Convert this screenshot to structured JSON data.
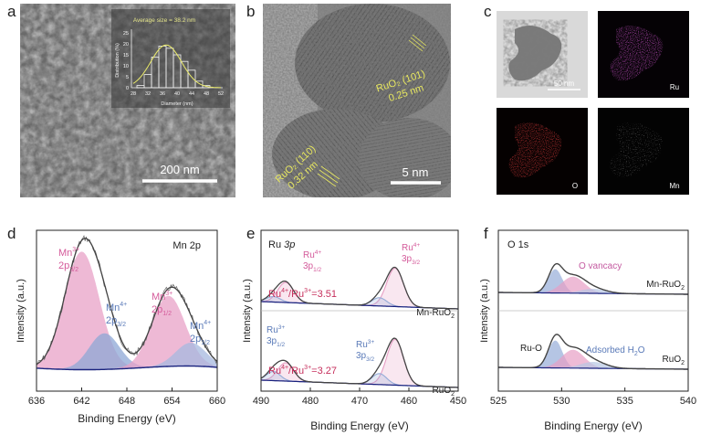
{
  "panel_labels": [
    "a",
    "b",
    "c",
    "d",
    "e",
    "f"
  ],
  "panel_a": {
    "scale_bar": "200 nm",
    "inset": {
      "title": "Average size = 38.2 nm",
      "xlabel": "Diameter (nm)",
      "ylabel": "Distribution (%)",
      "xticks": [
        "28",
        "32",
        "36",
        "40",
        "44",
        "48",
        "52"
      ],
      "yticks": [
        "0",
        "5",
        "10",
        "15",
        "20",
        "25"
      ],
      "bins": [
        {
          "x": 30,
          "y": 1
        },
        {
          "x": 32,
          "y": 6
        },
        {
          "x": 34,
          "y": 14
        },
        {
          "x": 36,
          "y": 19
        },
        {
          "x": 38,
          "y": 18
        },
        {
          "x": 40,
          "y": 15
        },
        {
          "x": 42,
          "y": 12
        },
        {
          "x": 44,
          "y": 8
        },
        {
          "x": 46,
          "y": 3
        },
        {
          "x": 48,
          "y": 1
        }
      ]
    }
  },
  "panel_b": {
    "scale_bar": "5 nm",
    "ann1_name": "RuO₂ (101)",
    "ann1_d": "0.25 nm",
    "ann2_name": "RuO₂ (110)",
    "ann2_d": "0.32 nm"
  },
  "panel_c": {
    "scale_bar": "50 nm",
    "maps": [
      "Ru",
      "O",
      "Mn"
    ]
  },
  "chart_data": [
    {
      "type": "line",
      "panel": "d",
      "title": "Mn 2p",
      "xlabel": "Binding Energy (eV)",
      "ylabel": "Intensity (a.u.)",
      "xlim": [
        636,
        660
      ],
      "xticks": [
        636,
        642,
        648,
        654,
        660
      ],
      "peaks": [
        {
          "name": "Mn³⁺ 2p₃/₂",
          "center": 642.0,
          "rel_height": 0.92
        },
        {
          "name": "Mn⁴⁺ 2p₃/₂",
          "center": 645.0,
          "rel_height": 0.28
        },
        {
          "name": "Mn³⁺ 2p₁/₂",
          "center": 653.5,
          "rel_height": 0.55
        },
        {
          "name": "Mn⁴⁺ 2p₁/₂",
          "center": 656.5,
          "rel_height": 0.18
        }
      ],
      "annotations": {
        "p1_ion": "Mn",
        "p1_ox": "3+",
        "p1_orb": "2p",
        "p1_sub": "3/2",
        "p2_ion": "Mn",
        "p2_ox": "4+",
        "p2_orb": "2p",
        "p2_sub": "3/2",
        "p3_ion": "Mn",
        "p3_ox": "3+",
        "p3_orb": "2p",
        "p3_sub": "1/2",
        "p4_ion": "Mn",
        "p4_ox": "4+",
        "p4_orb": "2p",
        "p4_sub": "1/2"
      }
    },
    {
      "type": "line",
      "panel": "e",
      "title": "Ru 3p",
      "xlabel": "Binding Energy (eV)",
      "ylabel": "Intensity (a.u.)",
      "xlim": [
        490,
        450
      ],
      "xticks": [
        490,
        480,
        470,
        460,
        450
      ],
      "series": [
        {
          "name": "Mn-RuO₂",
          "ratio": "Ru⁴⁺/Ru³⁺=3.51",
          "peaks": [
            {
              "name": "Ru⁴⁺ 3p₁/₂",
              "center": 485.0
            },
            {
              "name": "Ru⁴⁺ 3p₃/₂",
              "center": 462.8
            }
          ]
        },
        {
          "name": "RuO₂",
          "ratio": "Ru⁴⁺/Ru³⁺=3.27",
          "peaks": [
            {
              "name": "Ru³⁺ 3p₁/₂",
              "center": 487.5
            },
            {
              "name": "Ru³⁺ 3p₃/₂",
              "center": 466.0
            }
          ]
        }
      ],
      "annotations": {
        "t_ion": "Ru",
        "t_orb": "3p",
        "top_l_ion": "Ru",
        "top_l_ox": "4+",
        "top_l_orb": "3p",
        "top_l_sub": "1/2",
        "top_r_ion": "Ru",
        "top_r_ox": "4+",
        "top_r_orb": "3p",
        "top_r_sub": "3/2",
        "bot_l_ion": "Ru",
        "bot_l_ox": "3+",
        "bot_l_orb": "3p",
        "bot_l_sub": "1/2",
        "bot_r_ion": "Ru",
        "bot_r_ox": "3+",
        "bot_r_orb": "3p",
        "bot_r_sub": "3/2",
        "ratio1_a": "Ru",
        "ratio1_a_ox": "4+",
        "ratio1_b": "/Ru",
        "ratio1_b_ox": "3+",
        "ratio1_val": "=3.51",
        "ratio2_a": "Ru",
        "ratio2_a_ox": "4+",
        "ratio2_b": "/Ru",
        "ratio2_b_ox": "3+",
        "ratio2_val": "=3.27",
        "s1_main": "Mn-RuO",
        "s1_sub": "2",
        "s2_main": "RuO",
        "s2_sub": "2"
      }
    },
    {
      "type": "line",
      "panel": "f",
      "title": "O 1s",
      "xlabel": "Binding Energy (eV)",
      "ylabel": "Intensity (a.u.)",
      "xlim": [
        525,
        540
      ],
      "xticks": [
        525,
        530,
        535,
        540
      ],
      "series": [
        {
          "name": "Mn-RuO₂",
          "peaks": [
            {
              "name": "Ru-O",
              "center": 529.5
            },
            {
              "name": "O vancacy",
              "center": 530.9
            },
            {
              "name": "Adsorbed H₂O",
              "center": 532.5
            }
          ]
        },
        {
          "name": "RuO₂",
          "peaks": [
            {
              "name": "Ru-O",
              "center": 529.5
            },
            {
              "name": "O vancacy",
              "center": 530.9
            },
            {
              "name": "Adsorbed H₂O",
              "center": 532.5
            }
          ]
        }
      ],
      "annotations": {
        "t_main": "O 1s",
        "ovac": "O vancacy",
        "ruo": "Ru-O",
        "ads_main": "Adsorbed H",
        "ads_sub": "2",
        "ads_end": "O",
        "s1_main": "Mn-RuO",
        "s1_sub": "2",
        "s2_main": "RuO",
        "s2_sub": "2"
      }
    }
  ]
}
